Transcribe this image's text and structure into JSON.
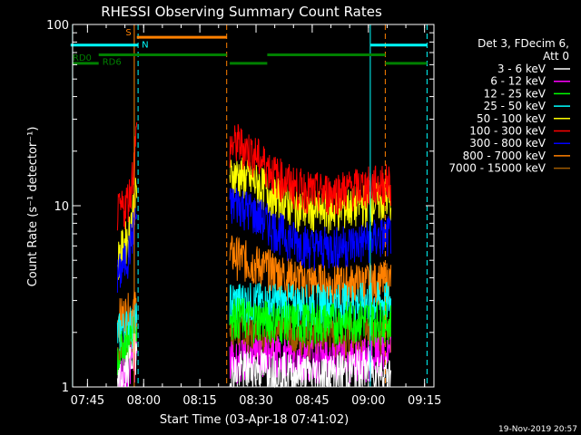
{
  "chart_data": {
    "type": "line",
    "title": "RHESSI Observing Summary Count Rates",
    "xlabel": "Start Time (03-Apr-18 07:41:02)",
    "ylabel": "Count Rate (s⁻¹ detector⁻¹)",
    "y_scale": "log",
    "ylim": [
      1,
      100
    ],
    "xlim": [
      "07:41:02",
      "09:17:30"
    ],
    "x_ticks": [
      "07:45",
      "08:00",
      "08:15",
      "08:30",
      "08:45",
      "09:00",
      "09:15"
    ],
    "y_ticks": [
      "1",
      "10",
      "100"
    ],
    "grid": false,
    "legend_header": [
      "Det 3, FDecim 6,",
      "Att 0"
    ],
    "legend_position": "right",
    "series": [
      {
        "name": "3 - 6 keV",
        "color": "#ffffff",
        "segments": [
          {
            "x": [
              "07:53:00",
              "07:55:00",
              "07:56:30",
              "07:57:30",
              "07:58:10"
            ],
            "y": [
              1.0,
              1.2,
              1.4,
              1.6,
              1.6
            ]
          },
          {
            "x": [
              "08:23:00",
              "08:30:00",
              "08:40:00",
              "08:50:00",
              "09:00:00",
              "09:06:00"
            ],
            "y": [
              1.2,
              1.3,
              1.2,
              1.2,
              1.3,
              1.2
            ]
          }
        ]
      },
      {
        "name": "6 - 12 keV",
        "color": "#ff00ff",
        "segments": [
          {
            "x": [
              "07:53:00",
              "07:57:00",
              "07:58:10"
            ],
            "y": [
              1.0,
              1.4,
              1.5
            ]
          },
          {
            "x": [
              "08:23:00",
              "08:35:00",
              "08:50:00",
              "09:06:00"
            ],
            "y": [
              1.4,
              1.5,
              1.4,
              1.5
            ]
          }
        ]
      },
      {
        "name": "12 - 25 keV",
        "color": "#00ff00",
        "segments": [
          {
            "x": [
              "07:53:00",
              "07:56:00",
              "07:58:10"
            ],
            "y": [
              1.5,
              1.8,
              2.0
            ]
          },
          {
            "x": [
              "08:23:00",
              "08:30:00",
              "08:40:00",
              "08:50:00",
              "09:00:00",
              "09:06:00"
            ],
            "y": [
              2.5,
              2.4,
              2.3,
              2.3,
              2.4,
              2.3
            ]
          }
        ]
      },
      {
        "name": "25 - 50 keV",
        "color": "#00ffff",
        "segments": [
          {
            "x": [
              "07:53:00",
              "07:58:10"
            ],
            "y": [
              2.0,
              2.3
            ]
          },
          {
            "x": [
              "08:23:00",
              "08:45:00",
              "09:06:00"
            ],
            "y": [
              3.0,
              2.9,
              3.0
            ]
          }
        ]
      },
      {
        "name": "50 - 100 keV",
        "color": "#ffff00",
        "segments": [
          {
            "x": [
              "07:53:00",
              "07:56:00",
              "07:58:10"
            ],
            "y": [
              5.0,
              7.0,
              12.0
            ]
          },
          {
            "x": [
              "08:23:00",
              "08:25:00",
              "08:30:00",
              "08:35:00",
              "08:40:00",
              "08:45:00",
              "08:50:00",
              "08:55:00",
              "09:00:00",
              "09:06:00"
            ],
            "y": [
              14.5,
              15.0,
              13.5,
              11.5,
              10.0,
              9.5,
              9.5,
              10.0,
              10.5,
              11.0
            ]
          }
        ]
      },
      {
        "name": "100 - 300 keV",
        "color": "#ff0000",
        "segments": [
          {
            "x": [
              "07:53:00",
              "07:55:00",
              "07:56:30",
              "07:57:30",
              "07:58:10"
            ],
            "y": [
              9.0,
              10.0,
              12.0,
              18.0,
              26.0
            ]
          },
          {
            "x": [
              "08:23:00",
              "08:25:00",
              "08:30:00",
              "08:35:00",
              "08:40:00",
              "08:45:00",
              "08:50:00",
              "08:55:00",
              "09:00:00",
              "09:06:00"
            ],
            "y": [
              21.0,
              22.5,
              19.0,
              15.0,
              13.0,
              12.0,
              12.0,
              12.5,
              13.0,
              13.5
            ]
          }
        ]
      },
      {
        "name": "300 - 800 keV",
        "color": "#0000ff",
        "segments": [
          {
            "x": [
              "07:53:00",
              "07:56:00",
              "07:58:10"
            ],
            "y": [
              4.0,
              5.5,
              9.0
            ]
          },
          {
            "x": [
              "08:23:00",
              "08:25:00",
              "08:30:00",
              "08:35:00",
              "08:40:00",
              "08:45:00",
              "08:50:00",
              "08:55:00",
              "09:00:00",
              "09:06:00"
            ],
            "y": [
              10.0,
              10.5,
              9.0,
              7.5,
              6.5,
              6.0,
              6.0,
              6.2,
              6.5,
              7.0
            ]
          }
        ]
      },
      {
        "name": "800 - 7000 keV",
        "color": "#ff8000",
        "segments": [
          {
            "x": [
              "07:53:00",
              "07:56:00",
              "07:58:10"
            ],
            "y": [
              2.4,
              2.6,
              2.8
            ]
          },
          {
            "x": [
              "08:23:00",
              "08:30:00",
              "08:40:00",
              "08:50:00",
              "09:00:00",
              "09:06:00"
            ],
            "y": [
              5.5,
              4.8,
              4.0,
              3.7,
              3.8,
              3.9
            ]
          }
        ]
      },
      {
        "name": "7000 - 15000 keV",
        "color": "#a05a00",
        "segments": [
          {
            "x": [
              "07:53:00",
              "07:58:10"
            ],
            "y": [
              1.6,
              1.8
            ]
          },
          {
            "x": [
              "08:23:00",
              "08:45:00",
              "09:06:00"
            ],
            "y": [
              2.0,
              1.9,
              2.0
            ]
          }
        ]
      }
    ],
    "intervals": [
      {
        "label": "S",
        "color": "#ff8000",
        "y": 85,
        "start": "07:58:10",
        "end": "08:22:10"
      },
      {
        "label": "N",
        "color": "#00ffff",
        "y": 77,
        "start": "07:40:30",
        "end": "07:58:30"
      },
      {
        "label": "N",
        "color": "#00ffff",
        "y": 77,
        "start": "09:00:30",
        "end": "09:15:40",
        "show_label": false
      },
      {
        "label": "RD0",
        "color": "#008000",
        "y": 61,
        "start": "07:41:00",
        "end": "07:48:00"
      },
      {
        "label": "RD6",
        "color": "#008000",
        "y": 68,
        "start": "07:48:00",
        "end": "08:22:10"
      },
      {
        "label": "RD6",
        "color": "#008000",
        "y": 61,
        "start": "08:23:00",
        "end": "08:33:00",
        "show_label": false
      },
      {
        "label": "RD6",
        "color": "#008000",
        "y": 68,
        "start": "08:33:00",
        "end": "09:04:30",
        "show_label": false
      },
      {
        "label": "RD6",
        "color": "#008000",
        "y": 61,
        "start": "09:04:30",
        "end": "09:15:40",
        "show_label": false
      }
    ],
    "vlines": [
      {
        "x": "07:41:00",
        "color": "#00ffff",
        "style": "solid"
      },
      {
        "x": "07:57:30",
        "color": "#ff8000",
        "style": "solid"
      },
      {
        "x": "07:58:30",
        "color": "#00ffff",
        "style": "dashed"
      },
      {
        "x": "08:22:10",
        "color": "#ff8000",
        "style": "dashed"
      },
      {
        "x": "09:00:30",
        "color": "#00ffff",
        "style": "solid"
      },
      {
        "x": "09:04:30",
        "color": "#ff8000",
        "style": "dashed"
      },
      {
        "x": "09:15:40",
        "color": "#00ffff",
        "style": "dashed"
      }
    ]
  },
  "footer": {
    "timestamp": "19-Nov-2019 20:57"
  }
}
